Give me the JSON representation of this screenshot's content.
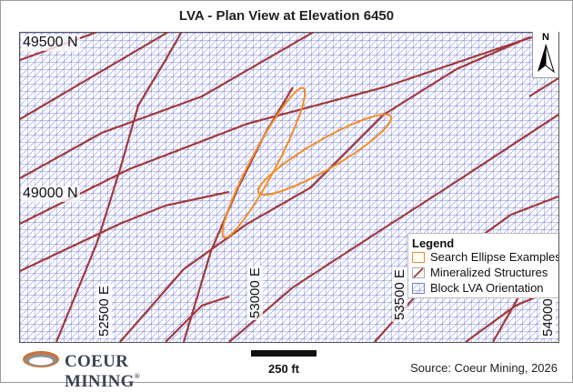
{
  "title": "LVA - Plan View at Elevation 6450",
  "north_labels": [
    "49500 N",
    "49000 N"
  ],
  "east_labels": [
    "52500 E",
    "53000 E",
    "53500 E",
    "54000 E"
  ],
  "north_arrow_letter": "N",
  "legend": {
    "title": "Legend",
    "items": [
      {
        "label": "Search Ellipse Examples",
        "icon": "ellipse-swatch",
        "color": "#f28c28"
      },
      {
        "label": "Mineralized Structures",
        "icon": "structure-swatch",
        "color": "#a03a3a"
      },
      {
        "label": "Block LVA Orientation",
        "icon": "grid-swatch",
        "color": "#5560d8"
      }
    ]
  },
  "scale_label": "250 ft",
  "source": "Source: Coeur Mining, 2026",
  "logo": {
    "text": "COEUR MINING",
    "reg": "®"
  },
  "colors": {
    "grid": "#5560d8",
    "structure": "#a03a3a",
    "ellipse": "#f28c28"
  }
}
